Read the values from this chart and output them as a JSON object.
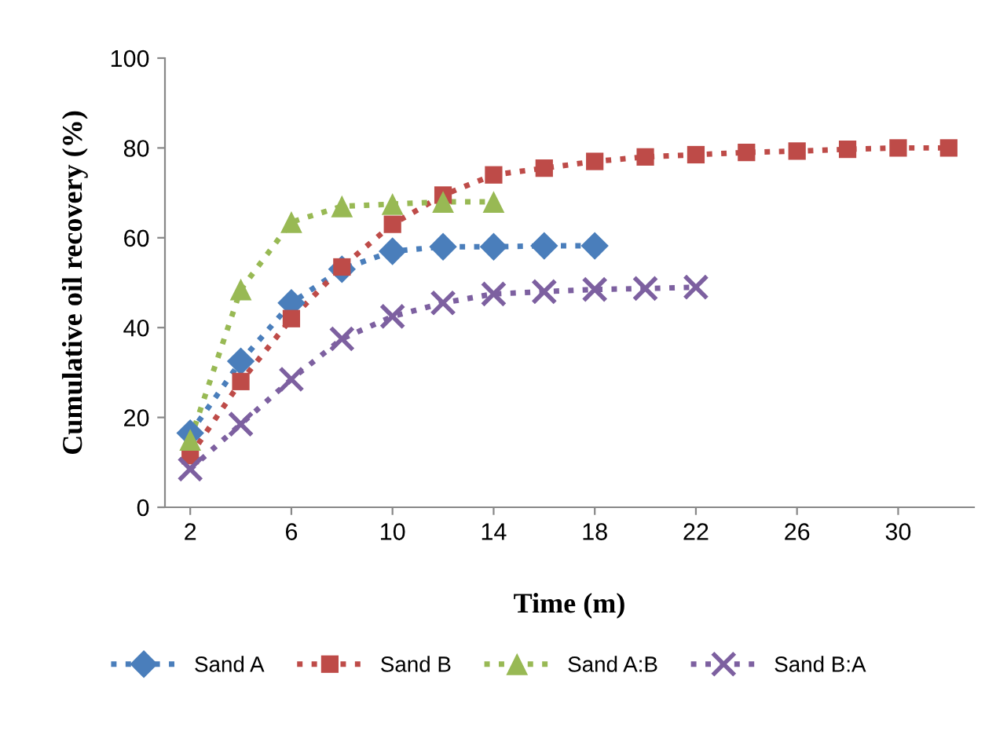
{
  "chart_data": {
    "type": "line",
    "xlabel": "Time (m)",
    "ylabel": "Cumulative oil recovery (%)",
    "xlim": [
      1,
      33
    ],
    "xticks": [
      2,
      6,
      10,
      14,
      18,
      22,
      26,
      30
    ],
    "ylim": [
      0,
      100
    ],
    "yticks": [
      0,
      20,
      40,
      60,
      80,
      100
    ],
    "grid": false,
    "legend": "bottom",
    "line_style": "dotted",
    "series": [
      {
        "name": "Sand A",
        "color": "#4a7ebb",
        "marker": "diamond",
        "x": [
          2,
          4,
          6,
          8,
          10,
          12,
          14,
          16,
          18
        ],
        "values": [
          16.5,
          32.5,
          45.5,
          53,
          57,
          58,
          58,
          58.2,
          58.2
        ]
      },
      {
        "name": "Sand B",
        "color": "#be4b48",
        "marker": "square",
        "x": [
          2,
          4,
          6,
          8,
          10,
          12,
          14,
          16,
          18,
          20,
          22,
          24,
          26,
          28,
          30,
          32
        ],
        "values": [
          11.5,
          28,
          42,
          53.5,
          63,
          69.5,
          74,
          75.5,
          77,
          78,
          78.5,
          79,
          79.3,
          79.7,
          80,
          80
        ]
      },
      {
        "name": "Sand A:B",
        "color": "#98b954",
        "marker": "triangle",
        "x": [
          2,
          4,
          6,
          8,
          10,
          12,
          14
        ],
        "values": [
          15,
          48.5,
          63.5,
          67,
          67.5,
          68,
          68
        ]
      },
      {
        "name": "Sand B:A",
        "color": "#7d60a0",
        "marker": "cross",
        "x": [
          2,
          4,
          6,
          8,
          10,
          12,
          14,
          16,
          18,
          20,
          22
        ],
        "values": [
          8.5,
          18.5,
          28.5,
          37.5,
          42.5,
          45.5,
          47.5,
          48,
          48.5,
          48.7,
          49
        ]
      }
    ]
  }
}
